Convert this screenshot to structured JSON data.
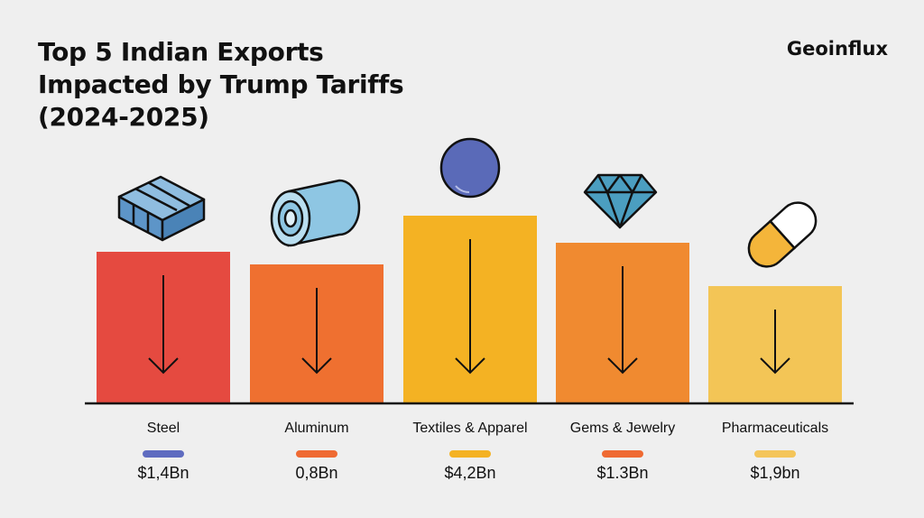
{
  "header": {
    "title_lines": [
      "Top 5 Indian Exports",
      "Impacted by Trump Tariffs",
      "(2024-2025)"
    ],
    "brand": "Geoinflux"
  },
  "chart_data": {
    "type": "bar",
    "title": "Top 5 Indian Exports Impacted by Trump Tariffs (2024-2025)",
    "categories": [
      "Steel",
      "Aluminum",
      "Textiles & Apparel",
      "Gems & Jewelry",
      "Pharmaceuticals"
    ],
    "values": [
      1.4,
      0.8,
      4.2,
      1.3,
      1.9
    ],
    "value_labels": [
      "$1,4Bn",
      "0,8Bn",
      "$4,2Bn",
      "$1.3Bn",
      "$1,9bn"
    ],
    "unit": "$ Billion",
    "bar_colors": [
      "#e54a40",
      "#ef7030",
      "#f4b223",
      "#f08a30",
      "#f3c556"
    ],
    "swatch_colors": [
      "#5f6cc0",
      "#ef6a32",
      "#f4b223",
      "#ef6a32",
      "#f4c55a"
    ],
    "icons": [
      "steel-ingot-icon",
      "aluminum-roll-icon",
      "textile-ball-icon",
      "diamond-icon",
      "pill-capsule-icon"
    ],
    "trend": "down",
    "grid": false,
    "legend": "none"
  }
}
